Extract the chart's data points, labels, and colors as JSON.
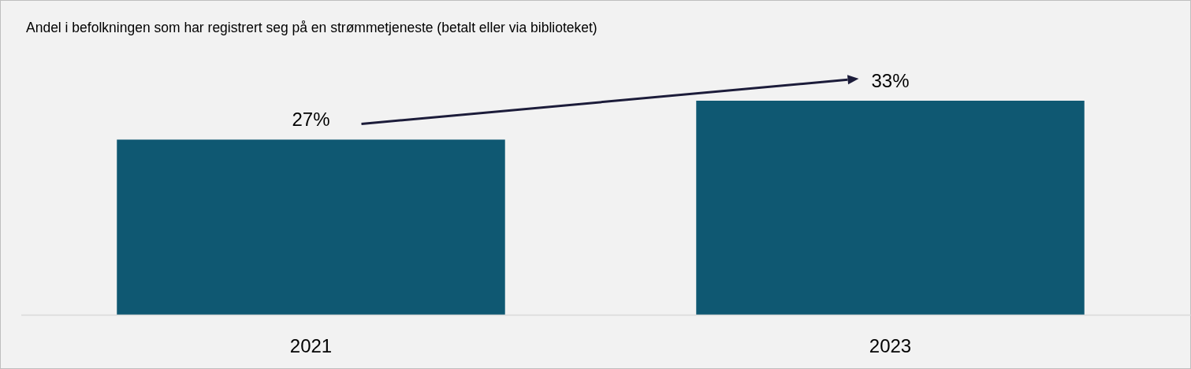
{
  "chart_data": {
    "type": "bar",
    "title": "Andel i befolkningen som har registrert seg på en strømmetjeneste (betalt eller via biblioteket)",
    "categories": [
      "2021",
      "2023"
    ],
    "values": [
      27,
      33
    ],
    "value_labels": [
      "27%",
      "33%"
    ],
    "color": "#0f5872"
  }
}
